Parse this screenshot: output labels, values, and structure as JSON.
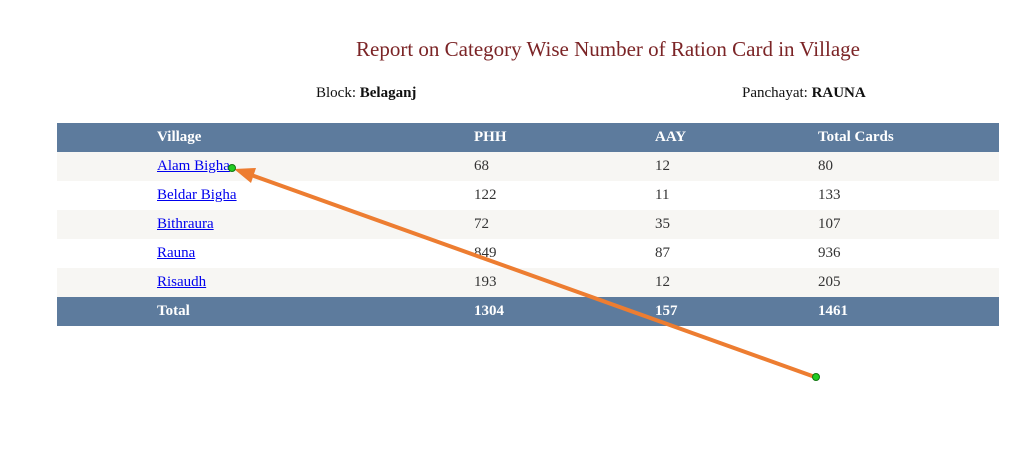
{
  "report": {
    "title": "Report on Category Wise Number of Ration Card in Village",
    "block_label": "Block: ",
    "block_value": "Belaganj",
    "panchayat_label": "Panchayat: ",
    "panchayat_value": "RAUNA"
  },
  "table": {
    "headers": [
      "Village",
      "PHH",
      "AAY",
      "Total Cards"
    ],
    "rows": [
      {
        "village": "Alam Bigha",
        "phh": "68",
        "aay": "12",
        "total": "80"
      },
      {
        "village": "Beldar Bigha",
        "phh": "122",
        "aay": "11",
        "total": "133"
      },
      {
        "village": "Bithraura",
        "phh": "72",
        "aay": "35",
        "total": "107"
      },
      {
        "village": "Rauna",
        "phh": "849",
        "aay": "87",
        "total": "936"
      },
      {
        "village": "Risaudh",
        "phh": "193",
        "aay": "12",
        "total": "205"
      }
    ],
    "footer": {
      "label": "Total",
      "phh": "1304",
      "aay": "157",
      "total": "1461"
    }
  },
  "colors": {
    "title": "#7b2426",
    "header_bg": "#5d7b9d",
    "link": "#0000ee",
    "annotation_arrow": "#ed7d31",
    "annotation_dot": "#22cc22"
  }
}
